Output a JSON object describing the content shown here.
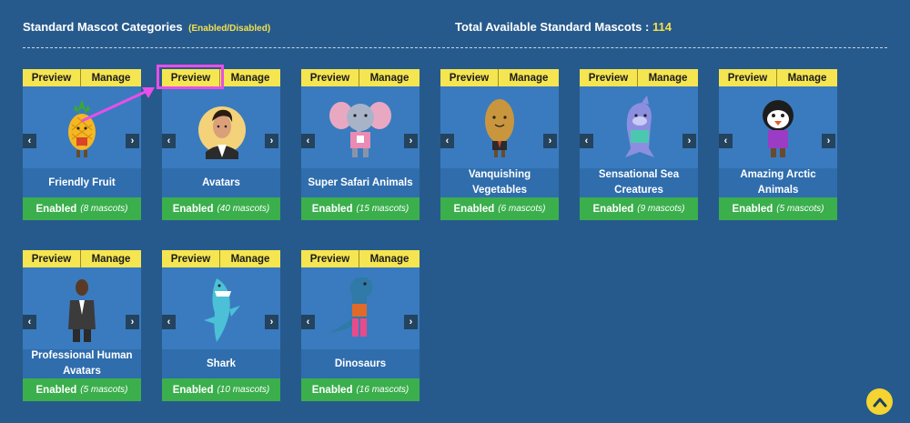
{
  "header": {
    "title": "Standard Mascot Categories",
    "subtitle": "(Enabled/Disabled)",
    "total_label": "Total Available Standard Mascots :",
    "total_value": "114"
  },
  "toolbar": {
    "preview": "Preview",
    "manage": "Manage"
  },
  "nav": {
    "prev": "‹",
    "next": "›"
  },
  "cards": [
    {
      "name": "Friendly Fruit",
      "status": "Enabled",
      "count": "(8 mascots)",
      "mascot": "pineapple-mascot"
    },
    {
      "name": "Avatars",
      "status": "Enabled",
      "count": "(40 mascots)",
      "mascot": "avatar-mascot"
    },
    {
      "name": "Super Safari Animals",
      "status": "Enabled",
      "count": "(15 mascots)",
      "mascot": "elephant-mascot"
    },
    {
      "name": "Vanquishing Vegetables",
      "status": "Enabled",
      "count": "(6 mascots)",
      "mascot": "potato-mascot"
    },
    {
      "name": "Sensational Sea Creatures",
      "status": "Enabled",
      "count": "(9 mascots)",
      "mascot": "dolphin-mascot"
    },
    {
      "name": "Amazing Arctic Animals",
      "status": "Enabled",
      "count": "(5 mascots)",
      "mascot": "penguin-mascot"
    },
    {
      "name": "Professional Human Avatars",
      "status": "Enabled",
      "count": "(5 mascots)",
      "mascot": "businessman-mascot"
    },
    {
      "name": "Shark",
      "status": "Enabled",
      "count": "(10 mascots)",
      "mascot": "shark-mascot"
    },
    {
      "name": "Dinosaurs",
      "status": "Enabled",
      "count": "(16 mascots)",
      "mascot": "dinosaur-mascot"
    }
  ],
  "colors": {
    "background": "#275a8c",
    "card_body": "#3a7bbf",
    "toolbar": "#f5e551",
    "enabled": "#3aaf4c",
    "highlight": "#e94ee9",
    "accent_text": "#f4e04d"
  }
}
